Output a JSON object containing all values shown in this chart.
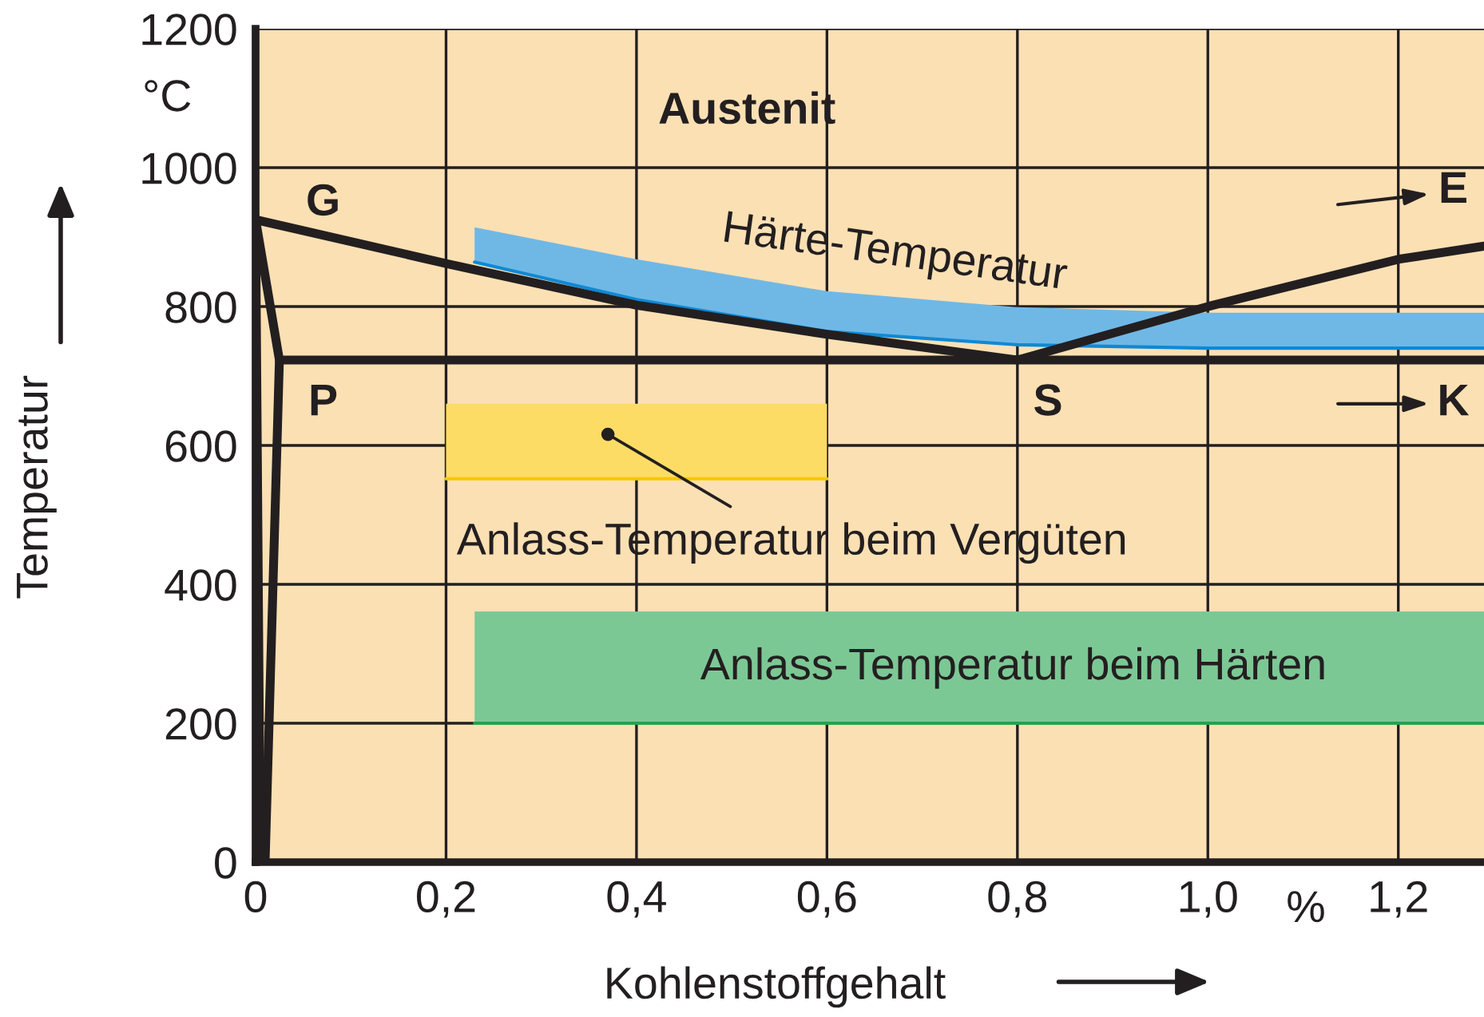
{
  "chart_data": {
    "type": "line",
    "xlabel": "Kohlenstoffgehalt",
    "ylabel": "Temperatur",
    "xlim": [
      0,
      1.29
    ],
    "ylim": [
      0,
      1200
    ],
    "xticks": [
      0,
      {
        "value": 0.2,
        "label": "0,2"
      },
      {
        "value": 0.4,
        "label": "0,4"
      },
      {
        "value": 0.6,
        "label": "0,6"
      },
      {
        "value": 0.8,
        "label": "0,8"
      },
      {
        "value": 1.0,
        "label": "1,0"
      },
      {
        "value": 1.2,
        "label": "1,2"
      }
    ],
    "yticks": [
      0,
      200,
      400,
      600,
      800,
      1000,
      1200
    ],
    "grid": true,
    "legend": false,
    "line_style": "solid",
    "marker": "none",
    "series": [
      {
        "color": "#0f89d5",
        "x": [
          0.23,
          0.4,
          0.6,
          0.8,
          1.0,
          1.29
        ],
        "values": [
          864,
          810,
          764,
          745,
          740,
          740
        ],
        "lower": [
          864,
          810,
          764,
          745,
          740,
          740
        ],
        "upper": [
          914,
          868,
          822,
          799,
          791,
          791
        ]
      },
      {
        "color": "#fcc500",
        "x": [
          0.2,
          0.6
        ],
        "values": [
          552,
          552
        ],
        "lower": [
          552,
          552
        ],
        "upper": [
          660,
          660
        ]
      },
      {
        "color": "#24a34e",
        "x": [
          0.23,
          1.29
        ],
        "values": [
          200,
          200
        ],
        "lower": [
          200,
          200
        ],
        "upper": [
          361,
          361
        ]
      },
      {
        "color": "#231f20",
        "x": [
          0.005,
          0,
          0.2,
          0.4,
          0.6,
          0.8,
          1.0,
          1.2,
          1.29
        ],
        "values": [
          0,
          925,
          862,
          802,
          760,
          723,
          800,
          868,
          887
        ]
      },
      {
        "color": "#231f20",
        "x": [
          0.01,
          0.025,
          1.29
        ],
        "values": [
          0,
          723,
          723
        ]
      },
      {
        "color": "#231f20",
        "x": [
          0,
          0.025
        ],
        "values": [
          925,
          723
        ]
      }
    ],
    "annotations": [
      "Austenit",
      "G",
      "P",
      "S",
      "E",
      "K",
      "°C",
      "%",
      "Härte-Temperatur",
      {
        "text": "Anlass-Temperatur beim Vergüten",
        "x": 0.37,
        "y": 616
      },
      "Anlass-Temperatur beim Härten"
    ]
  }
}
